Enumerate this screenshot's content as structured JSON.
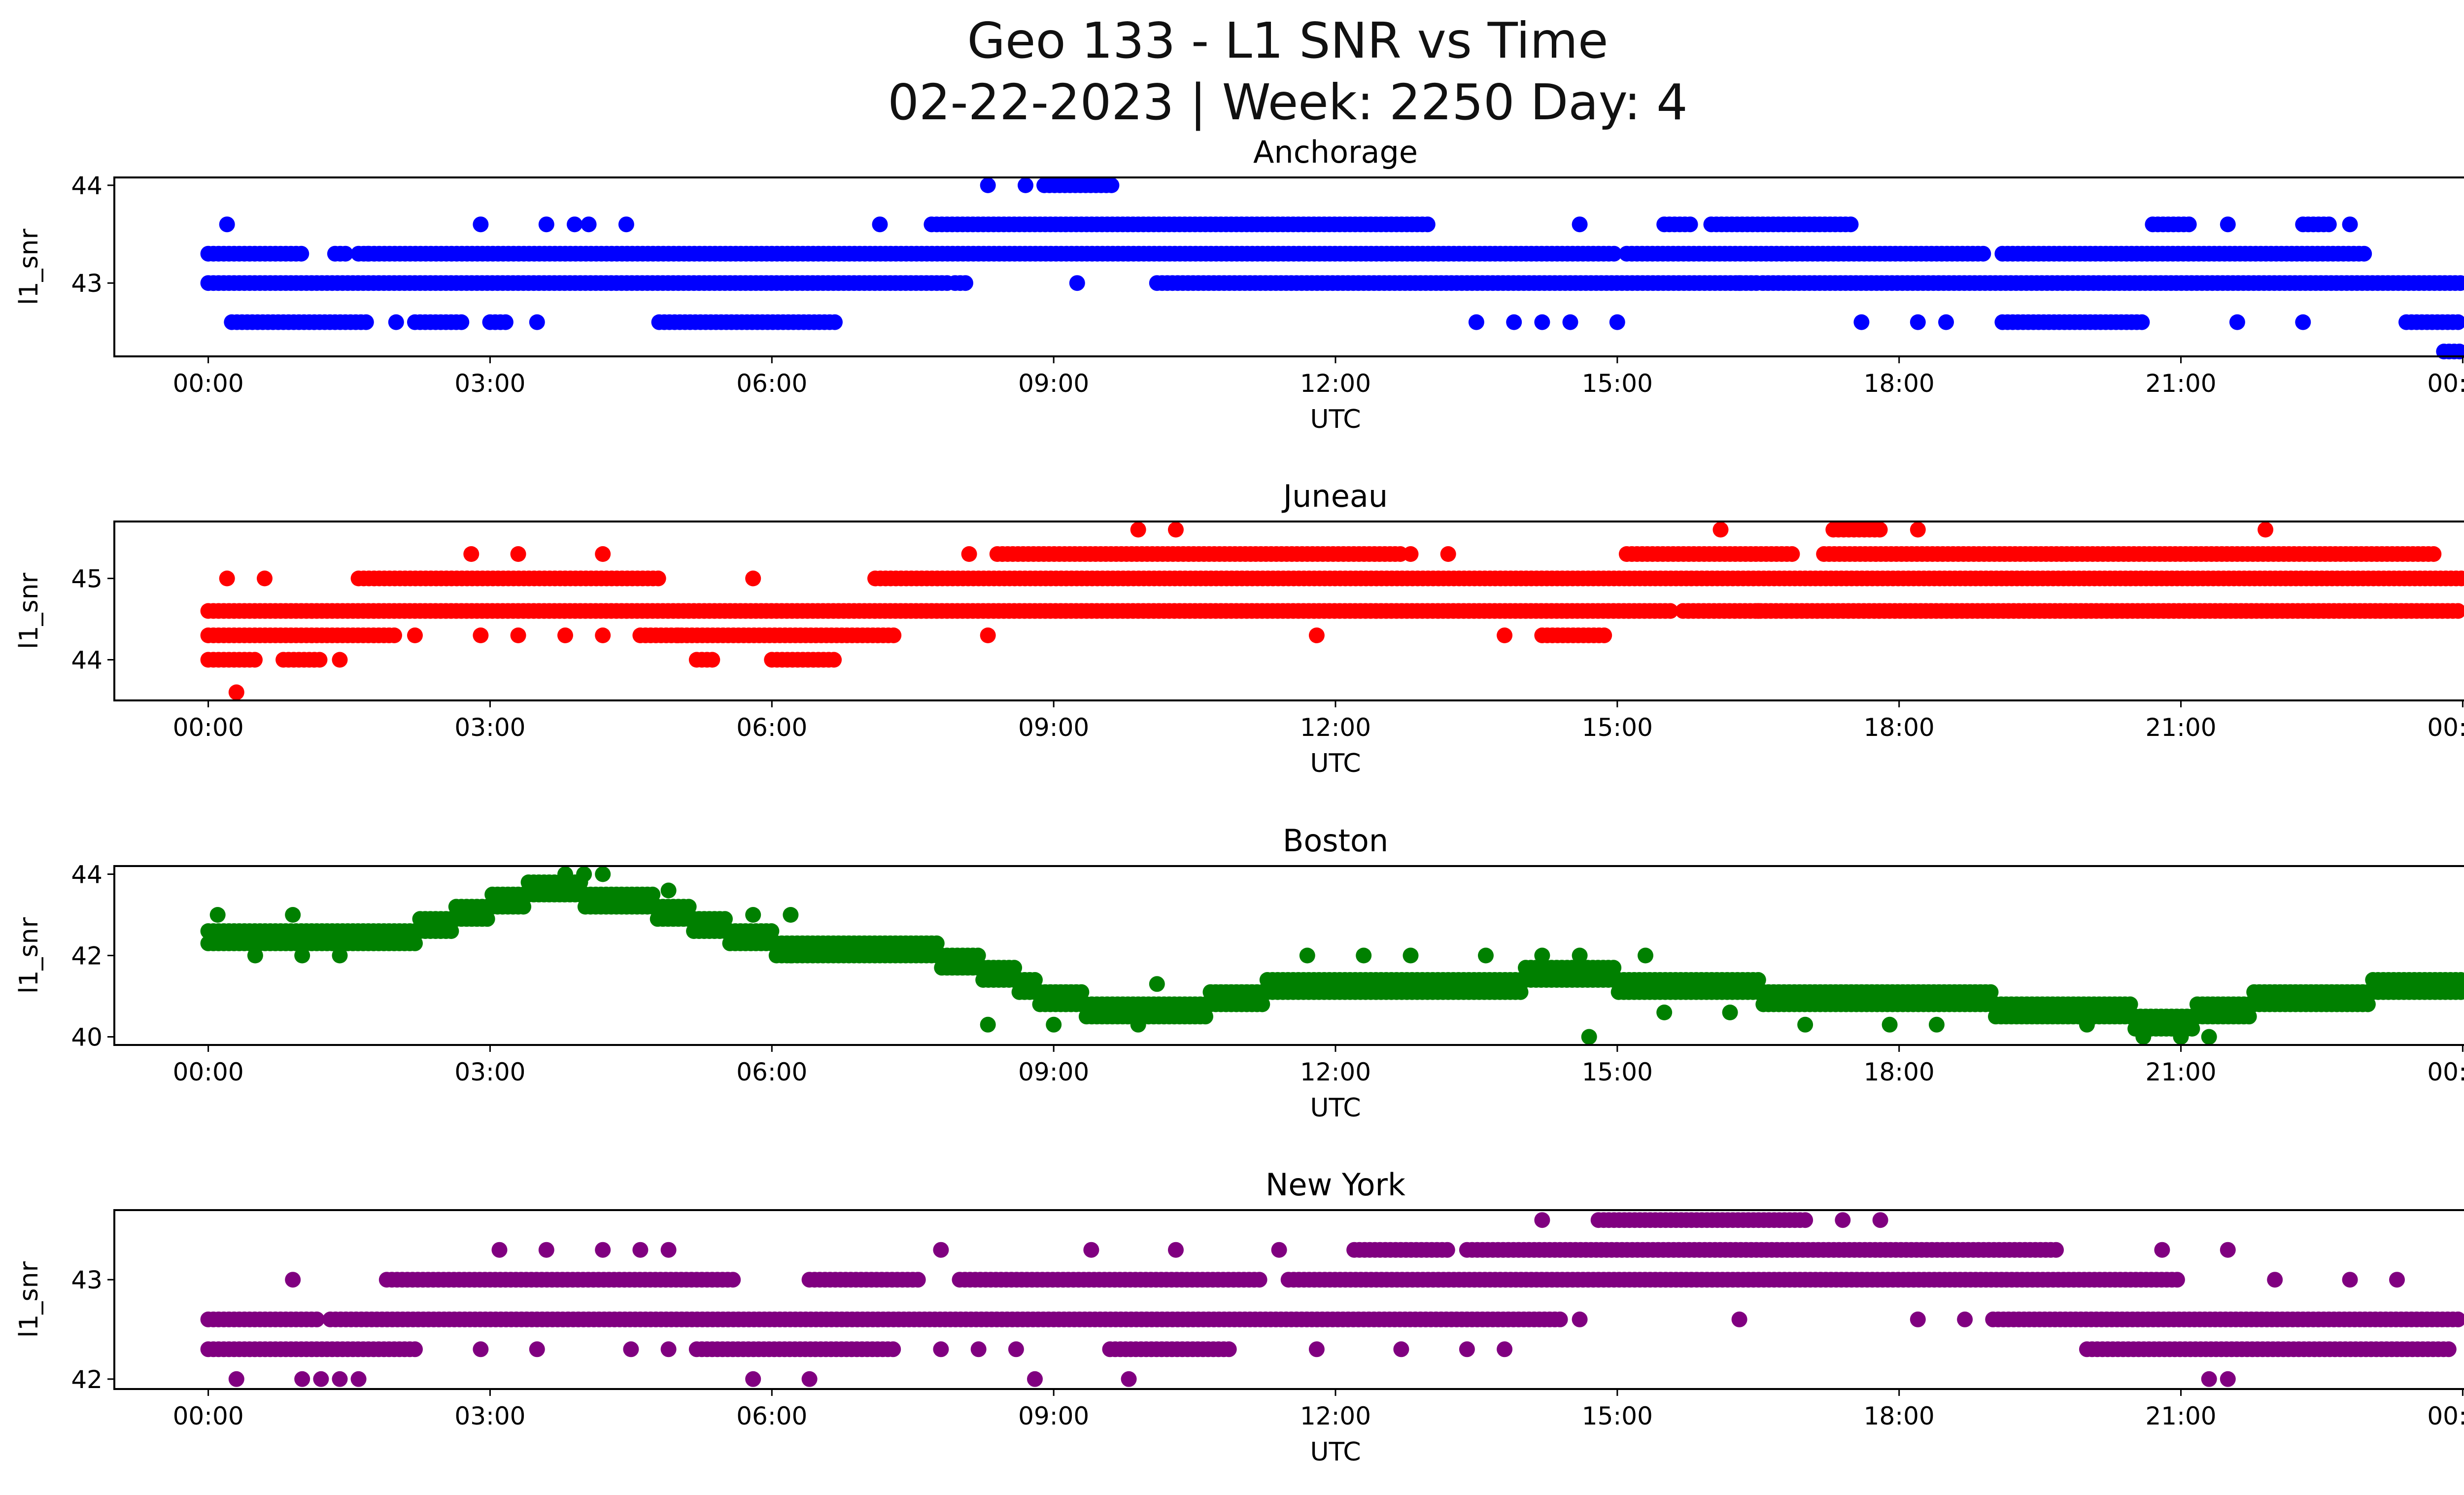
{
  "title_line1": "Geo 133 - L1 SNR vs Time",
  "title_line2": "02-22-2023 | Week: 2250 Day: 4",
  "colors": {
    "axes": "#000000",
    "background": "#ffffff"
  },
  "chart_data": [
    {
      "type": "scatter",
      "title": "Anchorage",
      "xlabel": "UTC",
      "ylabel": "l1_snr",
      "color": "#0000ff",
      "xlim_hours": [
        -1.0,
        25.0
      ],
      "ylim": [
        42.25,
        44.08
      ],
      "xticks": [
        "00:00",
        "03:00",
        "06:00",
        "09:00",
        "12:00",
        "15:00",
        "18:00",
        "21:00",
        "00:00"
      ],
      "yticks": [
        43,
        44
      ],
      "series": [
        {
          "y": 43.3,
          "segments": [
            [
              0.0,
              1.0
            ],
            [
              1.35,
              1.5
            ],
            [
              1.6,
              15.0
            ],
            [
              15.1,
              18.9
            ],
            [
              19.1,
              23.0
            ]
          ]
        },
        {
          "y": 43.0,
          "segments": [
            [
              0.0,
              7.9
            ],
            [
              7.95,
              8.1
            ],
            [
              10.1,
              16.5
            ],
            [
              16.55,
              24.0
            ]
          ]
        },
        {
          "y": 42.6,
          "segments": [
            [
              0.25,
              1.7
            ],
            [
              2.2,
              2.7
            ],
            [
              3.0,
              3.2
            ],
            [
              4.8,
              6.7
            ],
            [
              19.1,
              20.6
            ],
            [
              23.4,
              24.0
            ]
          ]
        },
        {
          "y": 43.6,
          "segments": [
            [
              7.7,
              13.0
            ],
            [
              15.5,
              15.8
            ],
            [
              16.0,
              17.5
            ],
            [
              20.7,
              21.1
            ],
            [
              22.3,
              22.6
            ]
          ]
        },
        {
          "y": 44.0,
          "segments": [
            [
              8.9,
              9.65
            ]
          ]
        },
        {
          "y": 42.3,
          "segments": [
            [
              23.8,
              24.0
            ]
          ]
        }
      ],
      "points": [
        [
          0.2,
          43.6
        ],
        [
          2.9,
          43.6
        ],
        [
          3.6,
          43.6
        ],
        [
          3.9,
          43.6
        ],
        [
          4.05,
          43.6
        ],
        [
          4.45,
          43.6
        ],
        [
          7.15,
          43.6
        ],
        [
          14.6,
          43.6
        ],
        [
          21.5,
          43.6
        ],
        [
          22.8,
          43.6
        ],
        [
          8.3,
          44.0
        ],
        [
          8.7,
          44.0
        ],
        [
          1.7,
          43.3
        ],
        [
          9.25,
          43.0
        ],
        [
          16.3,
          43.0
        ],
        [
          2.0,
          42.6
        ],
        [
          3.5,
          42.6
        ],
        [
          13.5,
          42.6
        ],
        [
          13.9,
          42.6
        ],
        [
          14.2,
          42.6
        ],
        [
          14.5,
          42.6
        ],
        [
          15.0,
          42.6
        ],
        [
          17.6,
          42.6
        ],
        [
          18.2,
          42.6
        ],
        [
          18.5,
          42.6
        ],
        [
          21.6,
          42.6
        ],
        [
          22.3,
          42.6
        ]
      ]
    },
    {
      "type": "scatter",
      "title": "Juneau",
      "xlabel": "UTC",
      "ylabel": "l1_snr",
      "color": "#ff0000",
      "xlim_hours": [
        -1.0,
        25.0
      ],
      "ylim": [
        43.5,
        45.7
      ],
      "xticks": [
        "00:00",
        "03:00",
        "06:00",
        "09:00",
        "12:00",
        "15:00",
        "18:00",
        "21:00",
        "00:00"
      ],
      "yticks": [
        44,
        45
      ],
      "series": [
        {
          "y": 44.6,
          "segments": [
            [
              0.0,
              15.6
            ],
            [
              15.7,
              24.0
            ]
          ]
        },
        {
          "y": 44.3,
          "segments": [
            [
              0.0,
              2.0
            ],
            [
              4.6,
              7.3
            ],
            [
              14.2,
              14.9
            ]
          ]
        },
        {
          "y": 44.0,
          "segments": [
            [
              0.0,
              0.5
            ],
            [
              0.8,
              1.2
            ],
            [
              5.2,
              5.4
            ],
            [
              6.0,
              6.7
            ]
          ]
        },
        {
          "y": 45.0,
          "segments": [
            [
              1.6,
              4.8
            ],
            [
              7.1,
              24.0
            ]
          ]
        },
        {
          "y": 45.3,
          "segments": [
            [
              8.4,
              12.7
            ],
            [
              15.1,
              16.9
            ],
            [
              17.2,
              23.7
            ]
          ]
        },
        {
          "y": 45.6,
          "segments": [
            [
              17.3,
              17.8
            ]
          ]
        }
      ],
      "points": [
        [
          0.2,
          45.0
        ],
        [
          0.6,
          45.0
        ],
        [
          5.8,
          45.0
        ],
        [
          0.3,
          43.6
        ],
        [
          1.4,
          44.0
        ],
        [
          2.8,
          45.3
        ],
        [
          3.3,
          45.3
        ],
        [
          4.2,
          45.3
        ],
        [
          8.1,
          45.3
        ],
        [
          12.8,
          45.3
        ],
        [
          13.2,
          45.3
        ],
        [
          9.9,
          45.6
        ],
        [
          10.3,
          45.6
        ],
        [
          16.1,
          45.6
        ],
        [
          18.2,
          45.6
        ],
        [
          21.9,
          45.6
        ],
        [
          2.2,
          44.3
        ],
        [
          2.9,
          44.3
        ],
        [
          3.3,
          44.3
        ],
        [
          3.8,
          44.3
        ],
        [
          4.2,
          44.3
        ],
        [
          8.3,
          44.3
        ],
        [
          11.8,
          44.3
        ],
        [
          13.8,
          44.3
        ],
        [
          16.5,
          44.6
        ],
        [
          5.0,
          44.3
        ]
      ]
    },
    {
      "type": "scatter",
      "title": "Boston",
      "xlabel": "UTC",
      "ylabel": "l1_snr",
      "color": "#008000",
      "xlim_hours": [
        -1.0,
        25.0
      ],
      "ylim": [
        39.8,
        44.2
      ],
      "xticks": [
        "00:00",
        "03:00",
        "06:00",
        "09:00",
        "12:00",
        "15:00",
        "18:00",
        "21:00",
        "00:00"
      ],
      "yticks": [
        40,
        42,
        44
      ],
      "profile": [
        [
          0,
          42.4
        ],
        [
          1.0,
          42.3
        ],
        [
          2.0,
          42.4
        ],
        [
          2.5,
          42.8
        ],
        [
          3.0,
          43.2
        ],
        [
          3.5,
          43.6
        ],
        [
          4.5,
          43.4
        ],
        [
          5.0,
          43.0
        ],
        [
          5.5,
          42.6
        ],
        [
          6.0,
          42.3
        ],
        [
          7.0,
          42.2
        ],
        [
          7.8,
          42.0
        ],
        [
          8.5,
          41.5
        ],
        [
          9.0,
          40.9
        ],
        [
          10.0,
          40.6
        ],
        [
          11.0,
          40.9
        ],
        [
          11.5,
          41.3
        ],
        [
          12.0,
          41.3
        ],
        [
          13.0,
          41.3
        ],
        [
          14.0,
          41.4
        ],
        [
          15.0,
          41.4
        ],
        [
          16.0,
          41.2
        ],
        [
          17.0,
          41.0
        ],
        [
          18.0,
          40.9
        ],
        [
          19.0,
          40.8
        ],
        [
          20.0,
          40.6
        ],
        [
          21.0,
          40.4
        ],
        [
          21.5,
          40.7
        ],
        [
          22.0,
          40.9
        ],
        [
          23.0,
          41.1
        ],
        [
          24.0,
          41.2
        ]
      ],
      "points": [
        [
          0.1,
          43.0
        ],
        [
          0.9,
          43.0
        ],
        [
          0.5,
          42.0
        ],
        [
          1.0,
          42.0
        ],
        [
          1.4,
          42.0
        ],
        [
          3.8,
          44.0
        ],
        [
          4.0,
          44.0
        ],
        [
          4.2,
          44.0
        ],
        [
          4.9,
          43.6
        ],
        [
          6.2,
          42.0
        ],
        [
          5.8,
          43.0
        ],
        [
          6.2,
          43.0
        ],
        [
          8.3,
          40.3
        ],
        [
          9.0,
          40.3
        ],
        [
          9.9,
          40.3
        ],
        [
          10.1,
          41.3
        ],
        [
          11.7,
          42.0
        ],
        [
          12.3,
          42.0
        ],
        [
          12.8,
          42.0
        ],
        [
          13.6,
          42.0
        ],
        [
          14.2,
          42.0
        ],
        [
          14.6,
          42.0
        ],
        [
          15.3,
          42.0
        ],
        [
          14.7,
          40.0
        ],
        [
          15.5,
          40.6
        ],
        [
          16.2,
          40.6
        ],
        [
          17.0,
          40.3
        ],
        [
          17.9,
          40.3
        ],
        [
          18.4,
          40.3
        ],
        [
          20.6,
          40.0
        ],
        [
          21.0,
          40.0
        ],
        [
          21.3,
          40.0
        ],
        [
          20.0,
          40.3
        ]
      ]
    },
    {
      "type": "scatter",
      "title": "New York",
      "xlabel": "UTC",
      "ylabel": "l1_snr",
      "color": "#800080",
      "xlim_hours": [
        -1.0,
        25.0
      ],
      "ylim": [
        41.9,
        43.7
      ],
      "xticks": [
        "00:00",
        "03:00",
        "06:00",
        "09:00",
        "12:00",
        "15:00",
        "18:00",
        "21:00",
        "00:00"
      ],
      "yticks": [
        42,
        43
      ],
      "series": [
        {
          "y": 42.6,
          "segments": [
            [
              0.0,
              1.2
            ],
            [
              1.3,
              14.4
            ],
            [
              19.0,
              24.0
            ]
          ]
        },
        {
          "y": 42.3,
          "segments": [
            [
              0.0,
              2.2
            ],
            [
              5.2,
              7.3
            ],
            [
              9.6,
              10.9
            ],
            [
              20.0,
              23.9
            ]
          ]
        },
        {
          "y": 43.0,
          "segments": [
            [
              1.9,
              5.6
            ],
            [
              6.4,
              7.6
            ],
            [
              8.0,
              11.2
            ],
            [
              11.5,
              21.0
            ]
          ]
        },
        {
          "y": 43.3,
          "segments": [
            [
              12.2,
              13.2
            ],
            [
              13.4,
              19.7
            ]
          ]
        },
        {
          "y": 43.6,
          "segments": [
            [
              14.8,
              17.0
            ]
          ]
        }
      ],
      "points": [
        [
          0.9,
          43.0
        ],
        [
          0.3,
          42.0
        ],
        [
          1.0,
          42.0
        ],
        [
          1.2,
          42.0
        ],
        [
          1.4,
          42.0
        ],
        [
          1.6,
          42.0
        ],
        [
          3.1,
          43.3
        ],
        [
          3.6,
          43.3
        ],
        [
          4.2,
          43.3
        ],
        [
          4.6,
          43.3
        ],
        [
          4.9,
          43.3
        ],
        [
          7.8,
          43.3
        ],
        [
          9.4,
          43.3
        ],
        [
          10.3,
          43.3
        ],
        [
          11.4,
          43.3
        ],
        [
          20.8,
          43.3
        ],
        [
          21.5,
          43.3
        ],
        [
          5.8,
          42.0
        ],
        [
          6.4,
          42.0
        ],
        [
          8.8,
          42.0
        ],
        [
          9.8,
          42.0
        ],
        [
          21.3,
          42.0
        ],
        [
          21.5,
          42.0
        ],
        [
          14.2,
          43.6
        ],
        [
          17.4,
          43.6
        ],
        [
          17.8,
          43.6
        ],
        [
          14.6,
          42.6
        ],
        [
          16.3,
          42.6
        ],
        [
          18.2,
          42.6
        ],
        [
          18.7,
          42.6
        ],
        [
          2.9,
          42.3
        ],
        [
          3.5,
          42.3
        ],
        [
          4.5,
          42.3
        ],
        [
          4.9,
          42.3
        ],
        [
          7.8,
          42.3
        ],
        [
          8.2,
          42.3
        ],
        [
          8.6,
          42.3
        ],
        [
          11.8,
          42.3
        ],
        [
          12.7,
          42.3
        ],
        [
          13.4,
          42.3
        ],
        [
          13.8,
          42.3
        ],
        [
          22.0,
          43.0
        ],
        [
          22.8,
          43.0
        ],
        [
          23.3,
          43.0
        ]
      ]
    }
  ]
}
